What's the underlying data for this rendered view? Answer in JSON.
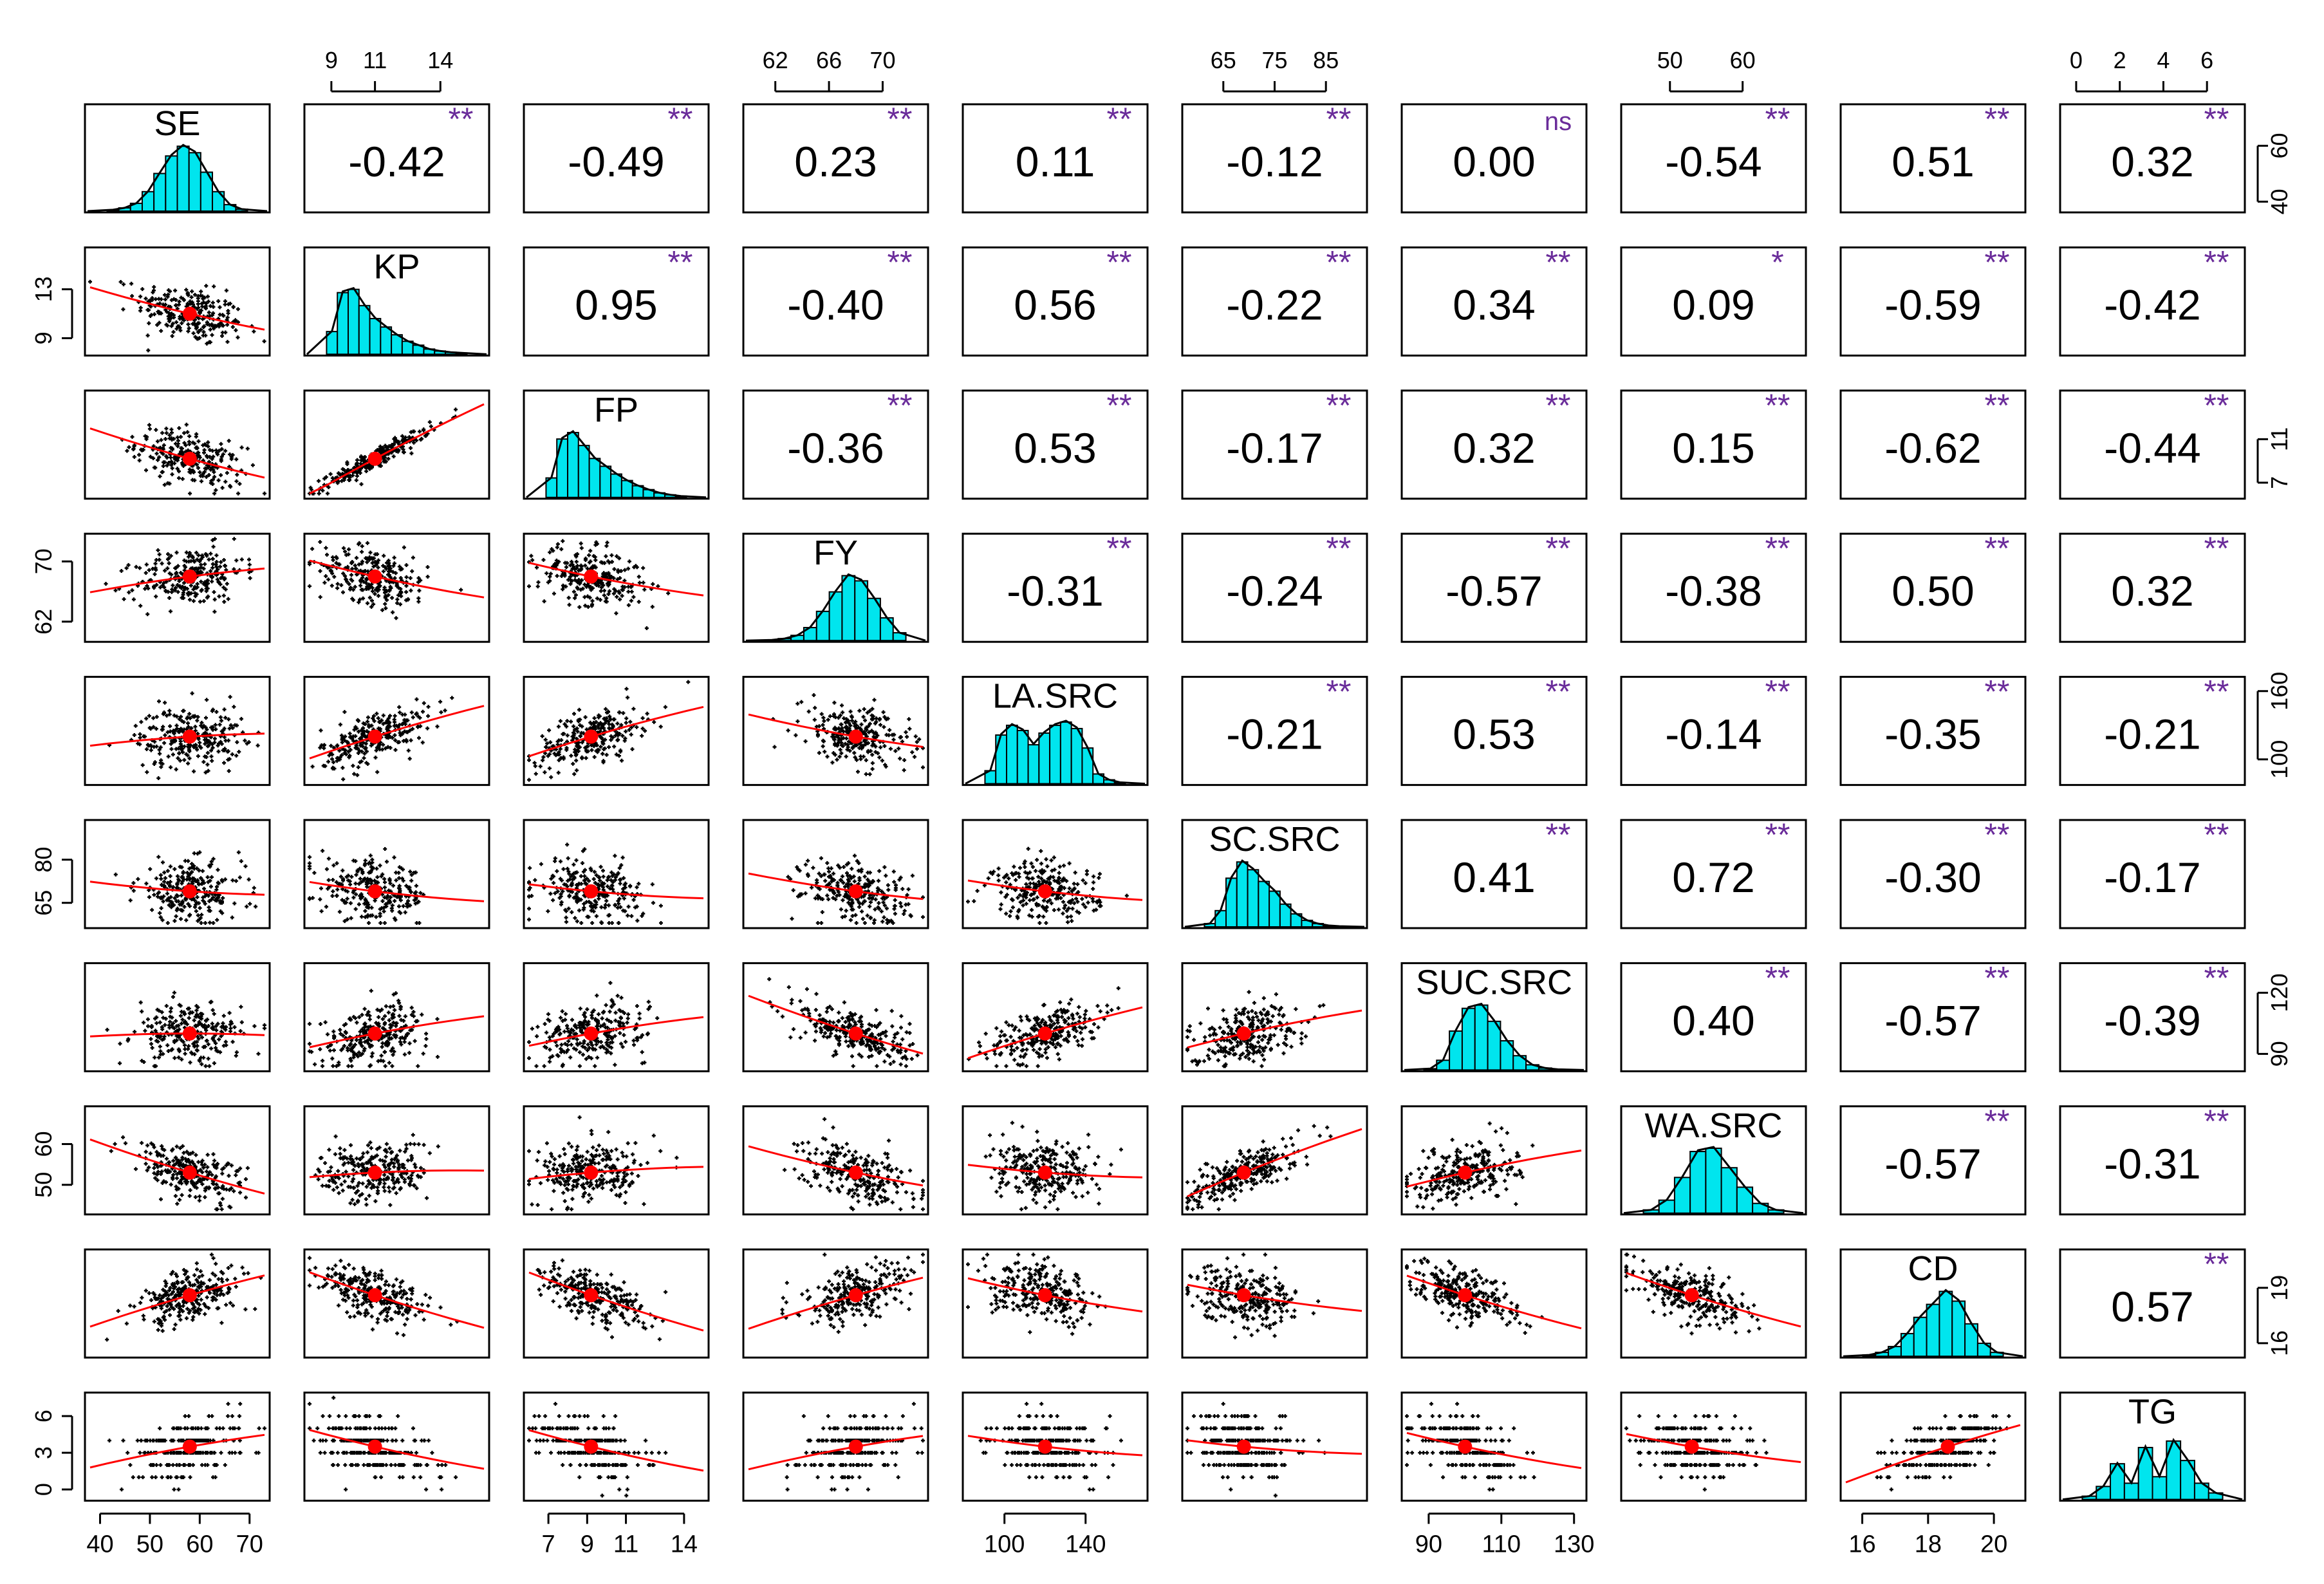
{
  "chart_data": {
    "type": "pairs",
    "variables": [
      "SE",
      "KP",
      "FP",
      "FY",
      "LA.SRC",
      "SC.SRC",
      "SUC.SRC",
      "WA.SRC",
      "CD",
      "TG"
    ],
    "ranges": {
      "SE": [
        38,
        73
      ],
      "KP": [
        8,
        16
      ],
      "FP": [
        6,
        15
      ],
      "FY": [
        60,
        73
      ],
      "LA.SRC": [
        82,
        168
      ],
      "SC.SRC": [
        58,
        92
      ],
      "SUC.SRC": [
        84,
        132
      ],
      "WA.SRC": [
        44,
        68
      ],
      "CD": [
        15.5,
        20.8
      ],
      "TG": [
        -0.5,
        7.5
      ]
    },
    "means": {
      "SE": 58,
      "KP": 11,
      "FP": 9.2,
      "FY": 68,
      "LA.SRC": 120,
      "SC.SRC": 69,
      "SUC.SRC": 100,
      "WA.SRC": 53,
      "CD": 18.6,
      "TG": 3.5
    },
    "correlations": [
      {
        "row": "SE",
        "col": "KP",
        "r": "-0.42",
        "sig": "**"
      },
      {
        "row": "SE",
        "col": "FP",
        "r": "-0.49",
        "sig": "**"
      },
      {
        "row": "SE",
        "col": "FY",
        "r": "0.23",
        "sig": "**"
      },
      {
        "row": "SE",
        "col": "LA.SRC",
        "r": "0.11",
        "sig": "**"
      },
      {
        "row": "SE",
        "col": "SC.SRC",
        "r": "-0.12",
        "sig": "**"
      },
      {
        "row": "SE",
        "col": "SUC.SRC",
        "r": "0.00",
        "sig": "ns"
      },
      {
        "row": "SE",
        "col": "WA.SRC",
        "r": "-0.54",
        "sig": "**"
      },
      {
        "row": "SE",
        "col": "CD",
        "r": "0.51",
        "sig": "**"
      },
      {
        "row": "SE",
        "col": "TG",
        "r": "0.32",
        "sig": "**"
      },
      {
        "row": "KP",
        "col": "FP",
        "r": "0.95",
        "sig": "**"
      },
      {
        "row": "KP",
        "col": "FY",
        "r": "-0.40",
        "sig": "**"
      },
      {
        "row": "KP",
        "col": "LA.SRC",
        "r": "0.56",
        "sig": "**"
      },
      {
        "row": "KP",
        "col": "SC.SRC",
        "r": "-0.22",
        "sig": "**"
      },
      {
        "row": "KP",
        "col": "SUC.SRC",
        "r": "0.34",
        "sig": "**"
      },
      {
        "row": "KP",
        "col": "WA.SRC",
        "r": "0.09",
        "sig": "*"
      },
      {
        "row": "KP",
        "col": "CD",
        "r": "-0.59",
        "sig": "**"
      },
      {
        "row": "KP",
        "col": "TG",
        "r": "-0.42",
        "sig": "**"
      },
      {
        "row": "FP",
        "col": "FY",
        "r": "-0.36",
        "sig": "**"
      },
      {
        "row": "FP",
        "col": "LA.SRC",
        "r": "0.53",
        "sig": "**"
      },
      {
        "row": "FP",
        "col": "SC.SRC",
        "r": "-0.17",
        "sig": "**"
      },
      {
        "row": "FP",
        "col": "SUC.SRC",
        "r": "0.32",
        "sig": "**"
      },
      {
        "row": "FP",
        "col": "WA.SRC",
        "r": "0.15",
        "sig": "**"
      },
      {
        "row": "FP",
        "col": "CD",
        "r": "-0.62",
        "sig": "**"
      },
      {
        "row": "FP",
        "col": "TG",
        "r": "-0.44",
        "sig": "**"
      },
      {
        "row": "FY",
        "col": "LA.SRC",
        "r": "-0.31",
        "sig": "**"
      },
      {
        "row": "FY",
        "col": "SC.SRC",
        "r": "-0.24",
        "sig": "**"
      },
      {
        "row": "FY",
        "col": "SUC.SRC",
        "r": "-0.57",
        "sig": "**"
      },
      {
        "row": "FY",
        "col": "WA.SRC",
        "r": "-0.38",
        "sig": "**"
      },
      {
        "row": "FY",
        "col": "CD",
        "r": "0.50",
        "sig": "**"
      },
      {
        "row": "FY",
        "col": "TG",
        "r": "0.32",
        "sig": "**"
      },
      {
        "row": "LA.SRC",
        "col": "SC.SRC",
        "r": "-0.21",
        "sig": "**"
      },
      {
        "row": "LA.SRC",
        "col": "SUC.SRC",
        "r": "0.53",
        "sig": "**"
      },
      {
        "row": "LA.SRC",
        "col": "WA.SRC",
        "r": "-0.14",
        "sig": "**"
      },
      {
        "row": "LA.SRC",
        "col": "CD",
        "r": "-0.35",
        "sig": "**"
      },
      {
        "row": "LA.SRC",
        "col": "TG",
        "r": "-0.21",
        "sig": "**"
      },
      {
        "row": "SC.SRC",
        "col": "SUC.SRC",
        "r": "0.41",
        "sig": "**"
      },
      {
        "row": "SC.SRC",
        "col": "WA.SRC",
        "r": "0.72",
        "sig": "**"
      },
      {
        "row": "SC.SRC",
        "col": "CD",
        "r": "-0.30",
        "sig": "**"
      },
      {
        "row": "SC.SRC",
        "col": "TG",
        "r": "-0.17",
        "sig": "**"
      },
      {
        "row": "SUC.SRC",
        "col": "WA.SRC",
        "r": "0.40",
        "sig": "**"
      },
      {
        "row": "SUC.SRC",
        "col": "CD",
        "r": "-0.57",
        "sig": "**"
      },
      {
        "row": "SUC.SRC",
        "col": "TG",
        "r": "-0.39",
        "sig": "**"
      },
      {
        "row": "WA.SRC",
        "col": "CD",
        "r": "-0.57",
        "sig": "**"
      },
      {
        "row": "WA.SRC",
        "col": "TG",
        "r": "-0.31",
        "sig": "**"
      },
      {
        "row": "CD",
        "col": "TG",
        "r": "0.57",
        "sig": "**"
      }
    ],
    "histograms": {
      "SE": [
        0.02,
        0.05,
        0.12,
        0.3,
        0.58,
        0.85,
        1.0,
        0.9,
        0.6,
        0.3,
        0.1,
        0.03
      ],
      "KP": [
        0.35,
        0.95,
        1.0,
        0.75,
        0.55,
        0.42,
        0.3,
        0.2,
        0.14,
        0.08,
        0.05,
        0.03,
        0.02
      ],
      "FP": [
        0.3,
        0.9,
        1.0,
        0.8,
        0.6,
        0.48,
        0.36,
        0.26,
        0.18,
        0.12,
        0.07,
        0.04,
        0.02
      ],
      "FY": [
        0.01,
        0.03,
        0.08,
        0.2,
        0.45,
        0.75,
        1.0,
        0.92,
        0.65,
        0.35,
        0.12
      ],
      "LA.SRC": [
        0.2,
        0.75,
        0.9,
        0.82,
        0.6,
        0.78,
        0.9,
        0.95,
        0.85,
        0.55,
        0.15,
        0.06,
        0.02
      ],
      "SC.SRC": [
        0.05,
        0.25,
        0.75,
        1.0,
        0.88,
        0.7,
        0.55,
        0.35,
        0.2,
        0.1,
        0.05,
        0.02,
        0.01
      ],
      "SUC.SRC": [
        0.02,
        0.15,
        0.6,
        0.95,
        1.0,
        0.75,
        0.45,
        0.22,
        0.08,
        0.03,
        0.01
      ],
      "WA.SRC": [
        0.05,
        0.2,
        0.55,
        0.95,
        1.0,
        0.7,
        0.4,
        0.15,
        0.05
      ],
      "CD": [
        0.02,
        0.06,
        0.15,
        0.35,
        0.6,
        0.8,
        1.0,
        0.85,
        0.5,
        0.2,
        0.06
      ],
      "TG": [
        0.05,
        0.2,
        0.55,
        0.25,
        0.8,
        0.35,
        0.9,
        0.6,
        0.25,
        0.1
      ]
    },
    "top_axes": [
      {
        "var": "KP",
        "ticks": [
          9,
          11,
          14
        ]
      },
      {
        "var": "FY",
        "ticks": [
          62,
          66,
          70
        ]
      },
      {
        "var": "SC.SRC",
        "ticks": [
          65,
          75,
          85
        ]
      },
      {
        "var": "WA.SRC",
        "ticks": [
          50,
          60
        ]
      },
      {
        "var": "TG",
        "ticks": [
          0,
          2,
          4,
          6
        ]
      }
    ],
    "bottom_axes": [
      {
        "var": "SE",
        "ticks": [
          40,
          50,
          60,
          70
        ]
      },
      {
        "var": "FP",
        "ticks": [
          7,
          9,
          11,
          14
        ]
      },
      {
        "var": "LA.SRC",
        "ticks": [
          100,
          140
        ]
      },
      {
        "var": "SUC.SRC",
        "ticks": [
          90,
          110,
          130
        ]
      },
      {
        "var": "CD",
        "ticks": [
          16,
          18,
          20
        ]
      }
    ],
    "left_axes": [
      {
        "var": "KP",
        "ticks": [
          9,
          13
        ]
      },
      {
        "var": "FY",
        "ticks": [
          62,
          70
        ]
      },
      {
        "var": "SC.SRC",
        "ticks": [
          65,
          80
        ]
      },
      {
        "var": "WA.SRC",
        "ticks": [
          50,
          60
        ]
      },
      {
        "var": "TG",
        "ticks": [
          0,
          3,
          6
        ]
      }
    ],
    "right_axes": [
      {
        "var": "SE",
        "ticks": [
          40,
          60
        ]
      },
      {
        "var": "FP",
        "ticks": [
          7,
          11
        ]
      },
      {
        "var": "LA.SRC",
        "ticks": [
          100,
          160
        ]
      },
      {
        "var": "SUC.SRC",
        "ticks": [
          90,
          120
        ]
      },
      {
        "var": "CD",
        "ticks": [
          16,
          19
        ]
      }
    ],
    "colors": {
      "histogram": "#00e5ee",
      "significance": "#6a2c9a",
      "smoother": "#ff0000",
      "points": "#000000"
    }
  }
}
